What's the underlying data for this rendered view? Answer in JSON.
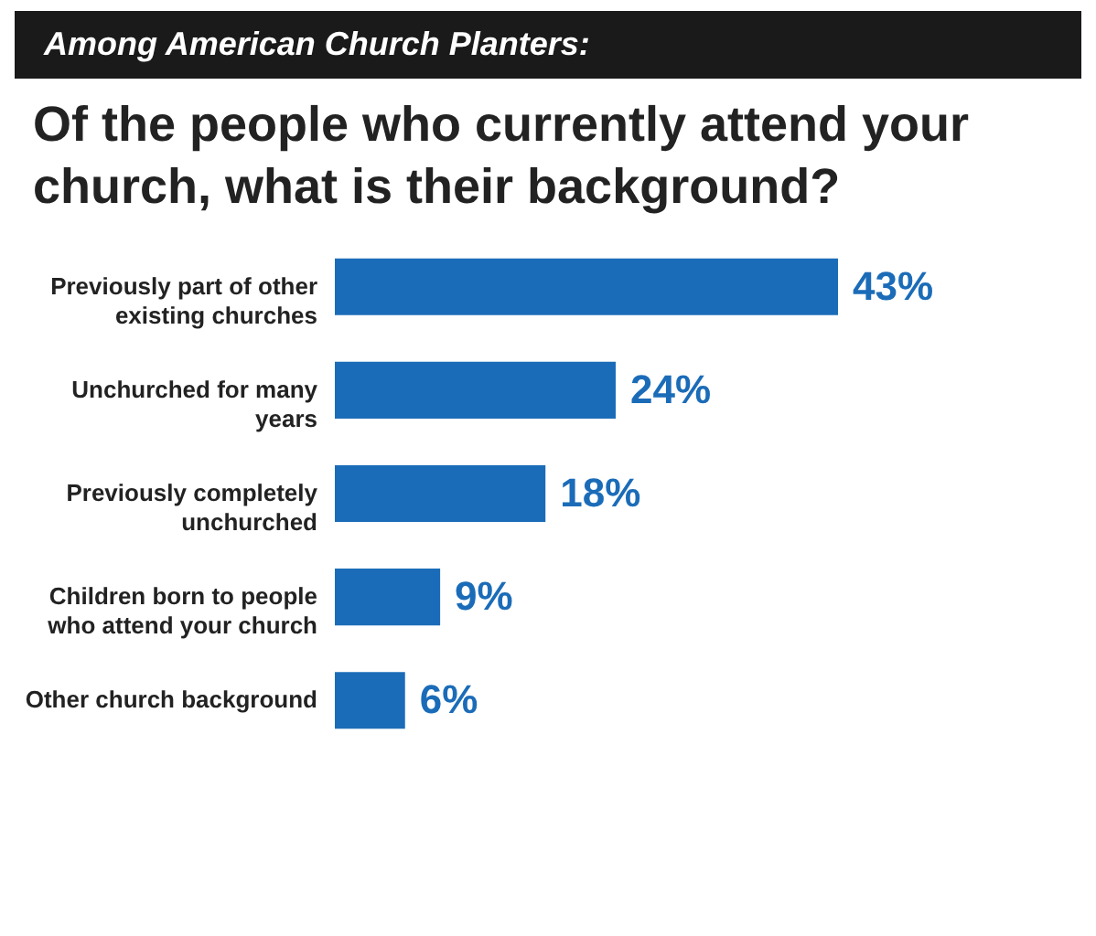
{
  "chart_data": {
    "type": "bar",
    "orientation": "horizontal",
    "title": "Among American Church Planters:",
    "subtitle": "Of the people who currently attend your church, what is their background?",
    "categories": [
      "Previously part of other existing churches",
      "Unchurched for many years",
      "Previously completely unchurched",
      "Children born to people who attend your church",
      "Other church background"
    ],
    "values": [
      43,
      24,
      18,
      9,
      6
    ],
    "value_labels": [
      "43%",
      "24%",
      "18%",
      "9%",
      "6%"
    ],
    "color": "#1b6cb8"
  }
}
